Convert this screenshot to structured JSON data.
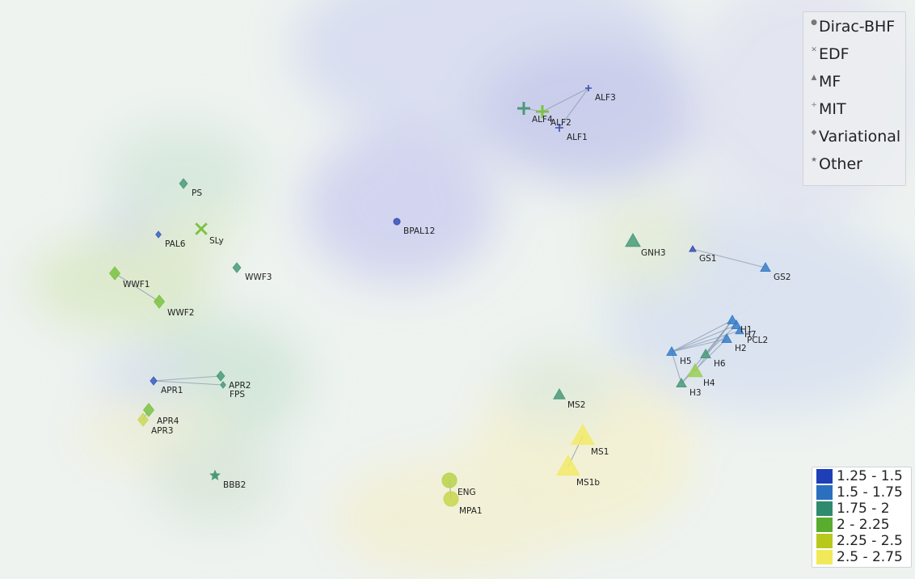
{
  "chart_data": {
    "type": "scatter",
    "title": "",
    "xlabel": "",
    "ylabel": "",
    "marker_legend": [
      {
        "name": "Dirac-BHF",
        "marker": "circle"
      },
      {
        "name": "EDF",
        "marker": "x"
      },
      {
        "name": "MF",
        "marker": "triangle"
      },
      {
        "name": "MIT",
        "marker": "plus"
      },
      {
        "name": "Variational",
        "marker": "diamond"
      },
      {
        "name": "Other",
        "marker": "star"
      }
    ],
    "color_scale": [
      {
        "label": "1.25 - 1.5",
        "color": "#1f3fb8"
      },
      {
        "label": "1.5 - 1.75",
        "color": "#2b6fbf"
      },
      {
        "label": "1.75 - 2",
        "color": "#2e8b6e"
      },
      {
        "label": "2 - 2.25",
        "color": "#5aac2f"
      },
      {
        "label": "2.25 - 2.5",
        "color": "#b9c91c"
      },
      {
        "label": "2.5 - 2.75",
        "color": "#f2e95a"
      }
    ],
    "xlim": [
      0,
      1132
    ],
    "ylim": [
      0,
      716
    ],
    "points": [
      {
        "label": "ALF1",
        "x": 692,
        "y": 158,
        "marker": "plus",
        "color": "#3a4fb5",
        "size": 5
      },
      {
        "label": "ALF2",
        "x": 671,
        "y": 138,
        "marker": "plus",
        "color": "#7cc243",
        "size": 8
      },
      {
        "label": "ALF3",
        "x": 728,
        "y": 109,
        "marker": "plus",
        "color": "#3a4fb5",
        "size": 4
      },
      {
        "label": "ALF4",
        "x": 648,
        "y": 134,
        "marker": "plus",
        "color": "#4a9a7a",
        "size": 8
      },
      {
        "label": "PS",
        "x": 227,
        "y": 227,
        "marker": "diamond",
        "color": "#4a9a7a",
        "size": 6
      },
      {
        "label": "PAL6",
        "x": 196,
        "y": 290,
        "marker": "diamond",
        "color": "#3a5fc0",
        "size": 4
      },
      {
        "label": "SLy",
        "x": 249,
        "y": 283,
        "marker": "x",
        "color": "#7cc243",
        "size": 9
      },
      {
        "label": "BPAL12",
        "x": 491,
        "y": 274,
        "marker": "circle",
        "color": "#3a4fb5",
        "size": 4
      },
      {
        "label": "GNH3",
        "x": 783,
        "y": 298,
        "marker": "triangle",
        "color": "#4a9a7a",
        "size": 9
      },
      {
        "label": "GS1",
        "x": 857,
        "y": 308,
        "marker": "triangle",
        "color": "#3a4fb5",
        "size": 4
      },
      {
        "label": "GS2",
        "x": 947,
        "y": 331,
        "marker": "triangle",
        "color": "#3a7fc8",
        "size": 6
      },
      {
        "label": "WWF1",
        "x": 142,
        "y": 338,
        "marker": "diamond",
        "color": "#7cc243",
        "size": 8
      },
      {
        "label": "WWF2",
        "x": 197,
        "y": 373,
        "marker": "diamond",
        "color": "#7cc243",
        "size": 8
      },
      {
        "label": "WWF3",
        "x": 293,
        "y": 331,
        "marker": "diamond",
        "color": "#4a9a7a",
        "size": 6
      },
      {
        "label": "H1",
        "x": 906,
        "y": 396,
        "marker": "triangle",
        "color": "#3a7fc8",
        "size": 6
      },
      {
        "label": "H7",
        "x": 911,
        "y": 402,
        "marker": "triangle",
        "color": "#3a7fc8",
        "size": 6
      },
      {
        "label": "PCL2",
        "x": 915,
        "y": 409,
        "marker": "triangle",
        "color": "#3a7fc8",
        "size": 5
      },
      {
        "label": "H2",
        "x": 899,
        "y": 419,
        "marker": "triangle",
        "color": "#3a7fc8",
        "size": 6
      },
      {
        "label": "H5",
        "x": 831,
        "y": 435,
        "marker": "triangle",
        "color": "#3a7fc8",
        "size": 6
      },
      {
        "label": "H6",
        "x": 873,
        "y": 438,
        "marker": "triangle",
        "color": "#4a9a7a",
        "size": 6
      },
      {
        "label": "H4",
        "x": 860,
        "y": 459,
        "marker": "triangle",
        "color": "#9ccf55",
        "size": 9
      },
      {
        "label": "H3",
        "x": 843,
        "y": 474,
        "marker": "triangle",
        "color": "#4a9a7a",
        "size": 6
      },
      {
        "label": "APR1",
        "x": 190,
        "y": 471,
        "marker": "diamond",
        "color": "#3a5fc0",
        "size": 5
      },
      {
        "label": "APR2",
        "x": 273,
        "y": 465,
        "marker": "diamond",
        "color": "#4a9a7a",
        "size": 6
      },
      {
        "label": "FPS",
        "x": 276,
        "y": 476,
        "marker": "diamond",
        "color": "#4a9a7a",
        "size": 4
      },
      {
        "label": "APR4",
        "x": 184,
        "y": 507,
        "marker": "diamond",
        "color": "#7cc243",
        "size": 8
      },
      {
        "label": "APR3",
        "x": 177,
        "y": 519,
        "marker": "diamond",
        "color": "#cbd85a",
        "size": 8
      },
      {
        "label": "MS2",
        "x": 692,
        "y": 488,
        "marker": "triangle",
        "color": "#4a9a7a",
        "size": 7
      },
      {
        "label": "MS1",
        "x": 721,
        "y": 539,
        "marker": "triangle",
        "color": "#f2ea6a",
        "size": 14
      },
      {
        "label": "MS1b",
        "x": 703,
        "y": 577,
        "marker": "triangle",
        "color": "#f2ea6a",
        "size": 14
      },
      {
        "label": "ENG",
        "x": 556,
        "y": 594,
        "marker": "circle",
        "color": "#b9d34a",
        "size": 9
      },
      {
        "label": "MPA1",
        "x": 558,
        "y": 617,
        "marker": "circle",
        "color": "#c9d650",
        "size": 9
      },
      {
        "label": "BBB2",
        "x": 266,
        "y": 588,
        "marker": "star",
        "color": "#4a9a7a",
        "size": 6
      }
    ],
    "links": [
      [
        "ALF4",
        "ALF2"
      ],
      [
        "ALF2",
        "ALF3"
      ],
      [
        "ALF3",
        "ALF1"
      ],
      [
        "WWF1",
        "WWF2"
      ],
      [
        "GS1",
        "GS2"
      ],
      [
        "APR1",
        "APR2"
      ],
      [
        "APR1",
        "FPS"
      ],
      [
        "APR4",
        "APR3"
      ],
      [
        "H5",
        "H1"
      ],
      [
        "H5",
        "H7"
      ],
      [
        "H5",
        "PCL2"
      ],
      [
        "H5",
        "H2"
      ],
      [
        "H5",
        "H3"
      ],
      [
        "H6",
        "H1"
      ],
      [
        "H6",
        "H7"
      ],
      [
        "H4",
        "H1"
      ],
      [
        "H3",
        "H2"
      ],
      [
        "H3",
        "H1"
      ],
      [
        "ENG",
        "MPA1"
      ],
      [
        "MS1",
        "MS1b"
      ]
    ]
  }
}
